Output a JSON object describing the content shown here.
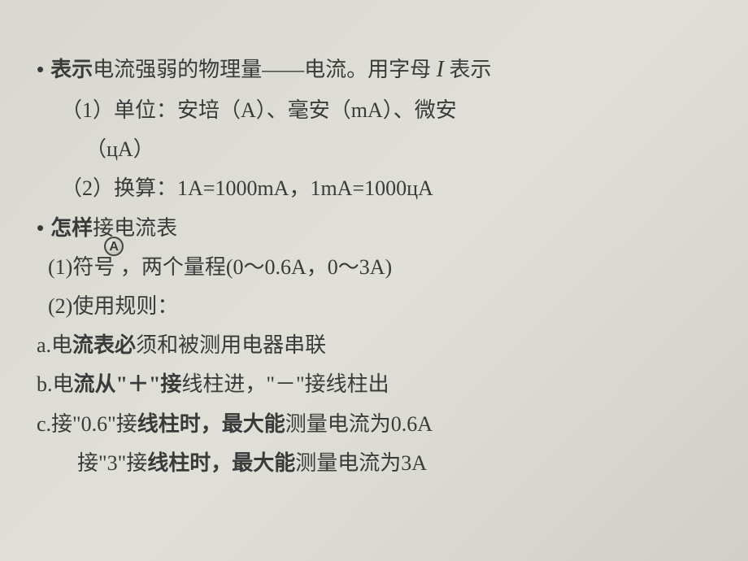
{
  "colors": {
    "background_start": "#d8d8d0",
    "background_end": "#d0d0c8",
    "text": "#3a3a3a",
    "symbol_border": "#444444"
  },
  "typography": {
    "body_fontsize": 26,
    "line_height": 1.85,
    "font_family": "SimSun"
  },
  "bullet1": {
    "bold": "表示",
    "rest_a": "电流强弱的物理量——电流。用字母 ",
    "italic": "I",
    "rest_b": " 表示"
  },
  "line1a": "（1）单位：安培（A）、毫安（mA）、微安",
  "line1b": "（цA）",
  "line2": "（2）换算：1A=1000mA，1mA=1000цA",
  "bullet2": {
    "bold": "怎样",
    "rest": "接电流表"
  },
  "ammeter_label": "A",
  "line3": "(1)符号      ，两个量程(0～0.6A，0～3A)",
  "line4": "(2)使用规则：",
  "line5a": "a.电",
  "line5b": "流表必",
  "line5c": "须和被测用电器串联",
  "line6a": "b.电",
  "line6b": "流从\"＋\"接",
  "line6c": "线柱进，\"－\"接线柱出",
  "line7a": "c.接\"0.6\"接",
  "line7b": "线柱时，最大能",
  "line7c": "测量电流为0.6A",
  "line8a": "接\"3\"接",
  "line8b": "线柱时，最大能",
  "line8c": "测量电流为3A"
}
